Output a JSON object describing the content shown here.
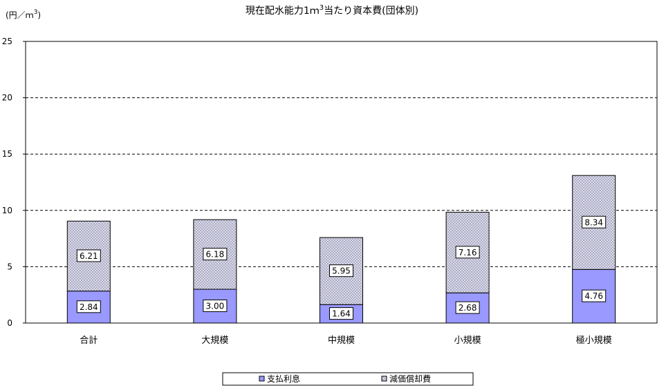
{
  "chart_data": {
    "type": "bar",
    "stacked": true,
    "title_main": "現在配水能力1ｍ",
    "title_sup": "3",
    "title_rest": "当たり資本費(団体別)",
    "unit_main": "(円／ｍ",
    "unit_sup": "3",
    "unit_close": ")",
    "categories": [
      "合計",
      "大規模",
      "中規模",
      "小規模",
      "極小規模"
    ],
    "series": [
      {
        "name": "支払利息",
        "values": [
          2.84,
          3.0,
          1.64,
          2.68,
          4.76
        ],
        "labels": [
          "2.84",
          "3.00",
          "1.64",
          "2.68",
          "4.76"
        ],
        "color": "#9999ff",
        "pattern": "solid"
      },
      {
        "name": "減価償却費",
        "values": [
          6.21,
          6.18,
          5.95,
          7.16,
          8.34
        ],
        "labels": [
          "6.21",
          "6.18",
          "5.95",
          "7.16",
          "8.34"
        ],
        "color": "#bfbfd9",
        "pattern": "crosshatch"
      }
    ],
    "ylim": [
      0,
      25
    ],
    "yticks": [
      0,
      5,
      10,
      15,
      20,
      25
    ],
    "grid": true,
    "legend_position": "bottom-center"
  }
}
